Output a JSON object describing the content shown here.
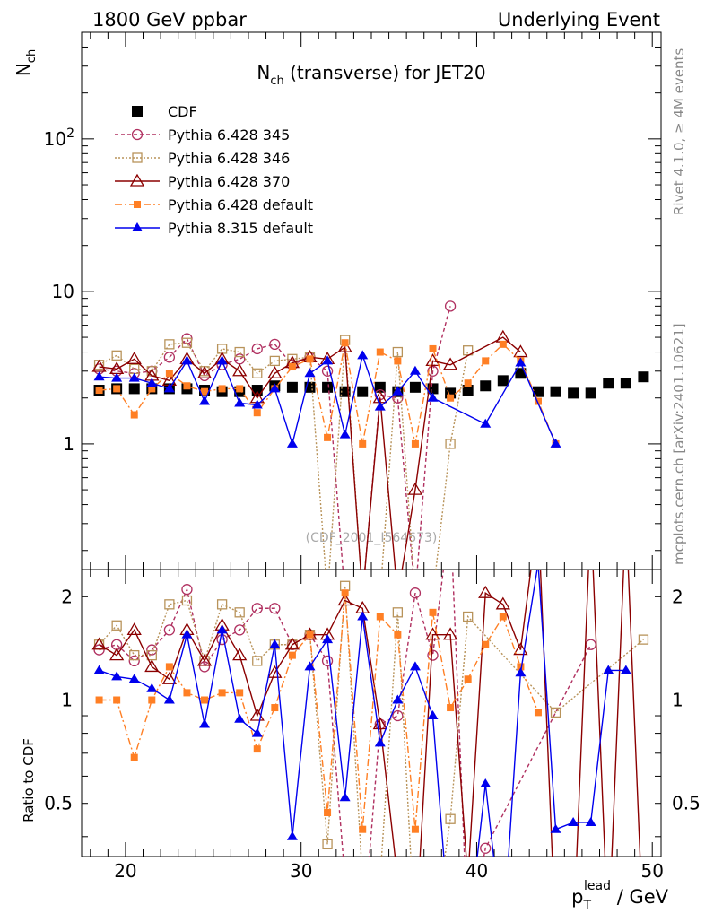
{
  "header": {
    "left": "1800 GeV ppbar",
    "right": "Underlying Event"
  },
  "side": {
    "rivet": "Rivet 4.1.0, ≥ 4M events",
    "mcplots": "mcplots.cern.ch [arXiv:2401.10621]"
  },
  "watermark": "(CDF_2001_I564673)",
  "colors": {
    "cdf": "#000000",
    "p345": "#b03060",
    "p346": "#b8935a",
    "p370": "#8b0000",
    "p6def": "#ff7f24",
    "p8def": "#0000ee"
  },
  "chart_data": [
    {
      "type": "line",
      "title": "N_ch (transverse) for JET20",
      "ylabel": "N_ch",
      "xlim": [
        17.5,
        50.5
      ],
      "ylim": [
        0.15,
        500
      ],
      "yscale": "log",
      "yticks": [
        {
          "v": 1,
          "label": "1"
        },
        {
          "v": 10,
          "label": "10"
        },
        {
          "v": 100,
          "label": "10^2"
        }
      ],
      "legend": {
        "position": "top-left",
        "entries": [
          "CDF",
          "Pythia 6.428 345",
          "Pythia 6.428 346",
          "Pythia 6.428 370",
          "Pythia 6.428 default",
          "Pythia 8.315 default"
        ]
      },
      "series": [
        {
          "name": "CDF",
          "key": "cdf",
          "x": [
            18.5,
            19.5,
            20.5,
            21.5,
            22.5,
            23.5,
            24.5,
            25.5,
            26.5,
            27.5,
            28.5,
            29.5,
            30.5,
            31.5,
            32.5,
            33.5,
            34.5,
            35.5,
            36.5,
            37.5,
            38.5,
            39.5,
            40.5,
            41.5,
            42.5,
            43.5,
            44.5,
            45.5,
            46.5,
            47.5,
            48.5,
            49.5
          ],
          "y": [
            2.25,
            2.3,
            2.3,
            2.3,
            2.3,
            2.3,
            2.25,
            2.2,
            2.2,
            2.25,
            2.4,
            2.35,
            2.35,
            2.35,
            2.2,
            2.2,
            2.35,
            2.2,
            2.35,
            2.3,
            2.15,
            2.25,
            2.4,
            2.6,
            2.9,
            2.2,
            2.2,
            2.15,
            2.15,
            2.5,
            2.5,
            2.75
          ]
        },
        {
          "name": "Pythia 6.428 345",
          "key": "p345",
          "x": [
            18.5,
            19.5,
            20.5,
            21.5,
            22.5,
            23.5,
            24.5,
            25.5,
            26.5,
            27.5,
            28.5,
            29.5,
            30.5,
            31.5,
            32.5,
            33.5,
            34.5,
            35.5,
            36.5,
            37.5,
            38.5
          ],
          "y": [
            3.1,
            3.0,
            2.9,
            3.0,
            3.7,
            4.9,
            2.8,
            3.3,
            3.6,
            4.2,
            4.5,
            3.3,
            3.7,
            3.0,
            0.1,
            0.1,
            2.1,
            2.0,
            0.1,
            3.0,
            8.0
          ]
        },
        {
          "name": "Pythia 6.428 346",
          "key": "p346",
          "x": [
            18.5,
            19.5,
            20.5,
            21.5,
            22.5,
            23.5,
            24.5,
            25.5,
            26.5,
            27.5,
            28.5,
            29.5,
            30.5,
            31.5,
            32.5,
            33.5,
            34.5,
            35.5,
            36.5,
            37.5,
            38.5,
            39.5
          ],
          "y": [
            3.3,
            3.8,
            3.1,
            3.0,
            4.5,
            4.6,
            3.0,
            4.2,
            4.0,
            2.9,
            3.5,
            3.6,
            3.7,
            0.1,
            4.8,
            0.1,
            0.1,
            4.0,
            0.1,
            0.1,
            1.0,
            4.1
          ]
        },
        {
          "name": "Pythia 6.428 370",
          "key": "p370",
          "x": [
            18.5,
            19.5,
            20.5,
            21.5,
            22.5,
            23.5,
            24.5,
            25.5,
            26.5,
            27.5,
            28.5,
            29.5,
            30.5,
            31.5,
            32.5,
            33.5,
            34.5,
            35.5,
            36.5,
            37.5,
            38.5,
            41.5,
            42.5
          ],
          "y": [
            3.2,
            3.1,
            3.6,
            2.8,
            2.6,
            3.6,
            2.9,
            3.6,
            3.0,
            2.0,
            2.9,
            3.4,
            3.7,
            3.6,
            4.3,
            0.1,
            2.0,
            0.1,
            0.5,
            3.5,
            3.3,
            5.0,
            4.0
          ]
        },
        {
          "name": "Pythia 6.428 default",
          "key": "p6def",
          "x": [
            18.5,
            19.5,
            20.5,
            21.5,
            22.5,
            23.5,
            24.5,
            25.5,
            26.5,
            27.5,
            28.5,
            29.5,
            30.5,
            31.5,
            32.5,
            33.5,
            34.5,
            35.5,
            36.5,
            37.5,
            38.5,
            39.5,
            40.5,
            41.5,
            42.5,
            43.5,
            44.5
          ],
          "y": [
            2.25,
            2.3,
            1.55,
            2.3,
            2.9,
            2.4,
            2.2,
            2.3,
            2.3,
            1.6,
            2.3,
            3.2,
            3.6,
            1.1,
            4.6,
            1.0,
            4.0,
            3.5,
            1.0,
            4.2,
            2.0,
            2.5,
            3.5,
            4.5,
            3.5,
            1.9,
            1.0
          ]
        },
        {
          "name": "Pythia 8.315 default",
          "key": "p8def",
          "x": [
            18.5,
            19.5,
            20.5,
            21.5,
            22.5,
            23.5,
            24.5,
            25.5,
            26.5,
            27.5,
            28.5,
            29.5,
            30.5,
            31.5,
            32.5,
            33.5,
            34.5,
            35.5,
            36.5,
            37.5,
            40.5,
            42.5,
            44.5
          ],
          "y": [
            2.75,
            2.7,
            2.7,
            2.5,
            2.3,
            3.5,
            1.9,
            3.5,
            1.85,
            1.8,
            2.3,
            1.0,
            2.9,
            3.5,
            1.15,
            3.8,
            1.75,
            2.2,
            3.0,
            2.0,
            1.35,
            3.4,
            1.0
          ]
        }
      ]
    },
    {
      "type": "line",
      "title": "",
      "xlabel": "p_T^lead / GeV",
      "ylabel": "Ratio to CDF",
      "xlim": [
        17.5,
        50.5
      ],
      "ylim": [
        0.35,
        2.4
      ],
      "yscale": "log",
      "xticks": [
        20,
        30,
        40,
        50
      ],
      "yticks": [
        {
          "v": 0.5,
          "label": "0.5"
        },
        {
          "v": 1,
          "label": "1"
        },
        {
          "v": 2,
          "label": "2"
        }
      ],
      "series": [
        {
          "name": "Pythia 6.428 345",
          "key": "p345",
          "x": [
            18.5,
            19.5,
            20.5,
            21.5,
            22.5,
            23.5,
            24.5,
            25.5,
            26.5,
            27.5,
            28.5,
            29.5,
            30.5,
            31.5,
            32.5,
            33.5,
            34.5,
            35.5,
            36.5,
            37.5,
            38.5,
            39.5,
            40.5,
            46.5
          ],
          "y": [
            1.4,
            1.45,
            1.3,
            1.4,
            1.6,
            2.1,
            1.25,
            1.5,
            1.6,
            1.85,
            1.85,
            1.45,
            1.55,
            1.3,
            0.3,
            0.2,
            0.85,
            0.9,
            2.05,
            1.35,
            3.5,
            0.2,
            0.37,
            1.45
          ]
        },
        {
          "name": "Pythia 6.428 346",
          "key": "p346",
          "x": [
            18.5,
            19.5,
            20.5,
            21.5,
            22.5,
            23.5,
            24.5,
            25.5,
            26.5,
            27.5,
            28.5,
            29.5,
            30.5,
            31.5,
            32.5,
            33.5,
            34.5,
            35.5,
            36.5,
            37.5,
            38.5,
            39.5,
            44.5,
            49.5
          ],
          "y": [
            1.45,
            1.65,
            1.35,
            1.35,
            1.9,
            1.95,
            1.3,
            1.9,
            1.8,
            1.3,
            1.45,
            1.45,
            1.55,
            0.38,
            2.15,
            0.3,
            0.3,
            1.8,
            0.2,
            0.2,
            0.45,
            1.75,
            0.92,
            1.5
          ]
        },
        {
          "name": "Pythia 6.428 370",
          "key": "p370",
          "x": [
            18.5,
            19.5,
            20.5,
            21.5,
            22.5,
            23.5,
            24.5,
            25.5,
            26.5,
            27.5,
            28.5,
            29.5,
            30.5,
            31.5,
            32.5,
            33.5,
            34.5,
            35.5,
            36.5,
            37.5,
            38.5,
            39.5,
            40.5,
            41.5,
            42.5,
            43.5,
            44.5,
            45.5,
            46.5,
            47.5,
            48.5,
            49.5
          ],
          "y": [
            1.45,
            1.35,
            1.6,
            1.25,
            1.15,
            1.6,
            1.3,
            1.65,
            1.35,
            0.9,
            1.2,
            1.45,
            1.55,
            1.55,
            1.95,
            1.85,
            0.85,
            0.3,
            0.2,
            1.55,
            1.55,
            0.3,
            2.05,
            1.9,
            1.4,
            3.5,
            0.2,
            0.2,
            3.5,
            0.2,
            3.5,
            0.2
          ]
        },
        {
          "name": "Pythia 6.428 default",
          "key": "p6def",
          "x": [
            18.5,
            19.5,
            20.5,
            21.5,
            22.5,
            23.5,
            24.5,
            25.5,
            26.5,
            27.5,
            28.5,
            29.5,
            30.5,
            31.5,
            32.5,
            33.5,
            34.5,
            35.5,
            36.5,
            37.5,
            38.5,
            39.5,
            40.5,
            41.5,
            42.5,
            43.5
          ],
          "y": [
            1.0,
            1.0,
            0.68,
            1.0,
            1.25,
            1.05,
            1.0,
            1.05,
            1.05,
            0.72,
            0.95,
            1.35,
            1.55,
            0.47,
            2.05,
            0.42,
            1.75,
            1.55,
            0.42,
            1.8,
            0.95,
            1.15,
            1.45,
            1.75,
            1.25,
            0.92
          ]
        },
        {
          "name": "Pythia 8.315 default",
          "key": "p8def",
          "x": [
            18.5,
            19.5,
            20.5,
            21.5,
            22.5,
            23.5,
            24.5,
            25.5,
            26.5,
            27.5,
            28.5,
            29.5,
            30.5,
            31.5,
            32.5,
            33.5,
            34.5,
            35.5,
            36.5,
            37.5,
            38.5,
            39.5,
            40.5,
            41.5,
            42.5,
            43.5,
            44.5,
            45.5,
            46.5,
            47.5,
            48.5
          ],
          "y": [
            1.22,
            1.17,
            1.15,
            1.08,
            1.0,
            1.55,
            0.85,
            1.6,
            0.88,
            0.8,
            1.45,
            0.4,
            1.25,
            1.5,
            0.52,
            1.75,
            0.75,
            1.0,
            1.25,
            0.9,
            0.2,
            0.2,
            0.57,
            0.2,
            1.2,
            2.5,
            0.42,
            0.44,
            0.44,
            1.22,
            1.22
          ]
        }
      ]
    }
  ]
}
